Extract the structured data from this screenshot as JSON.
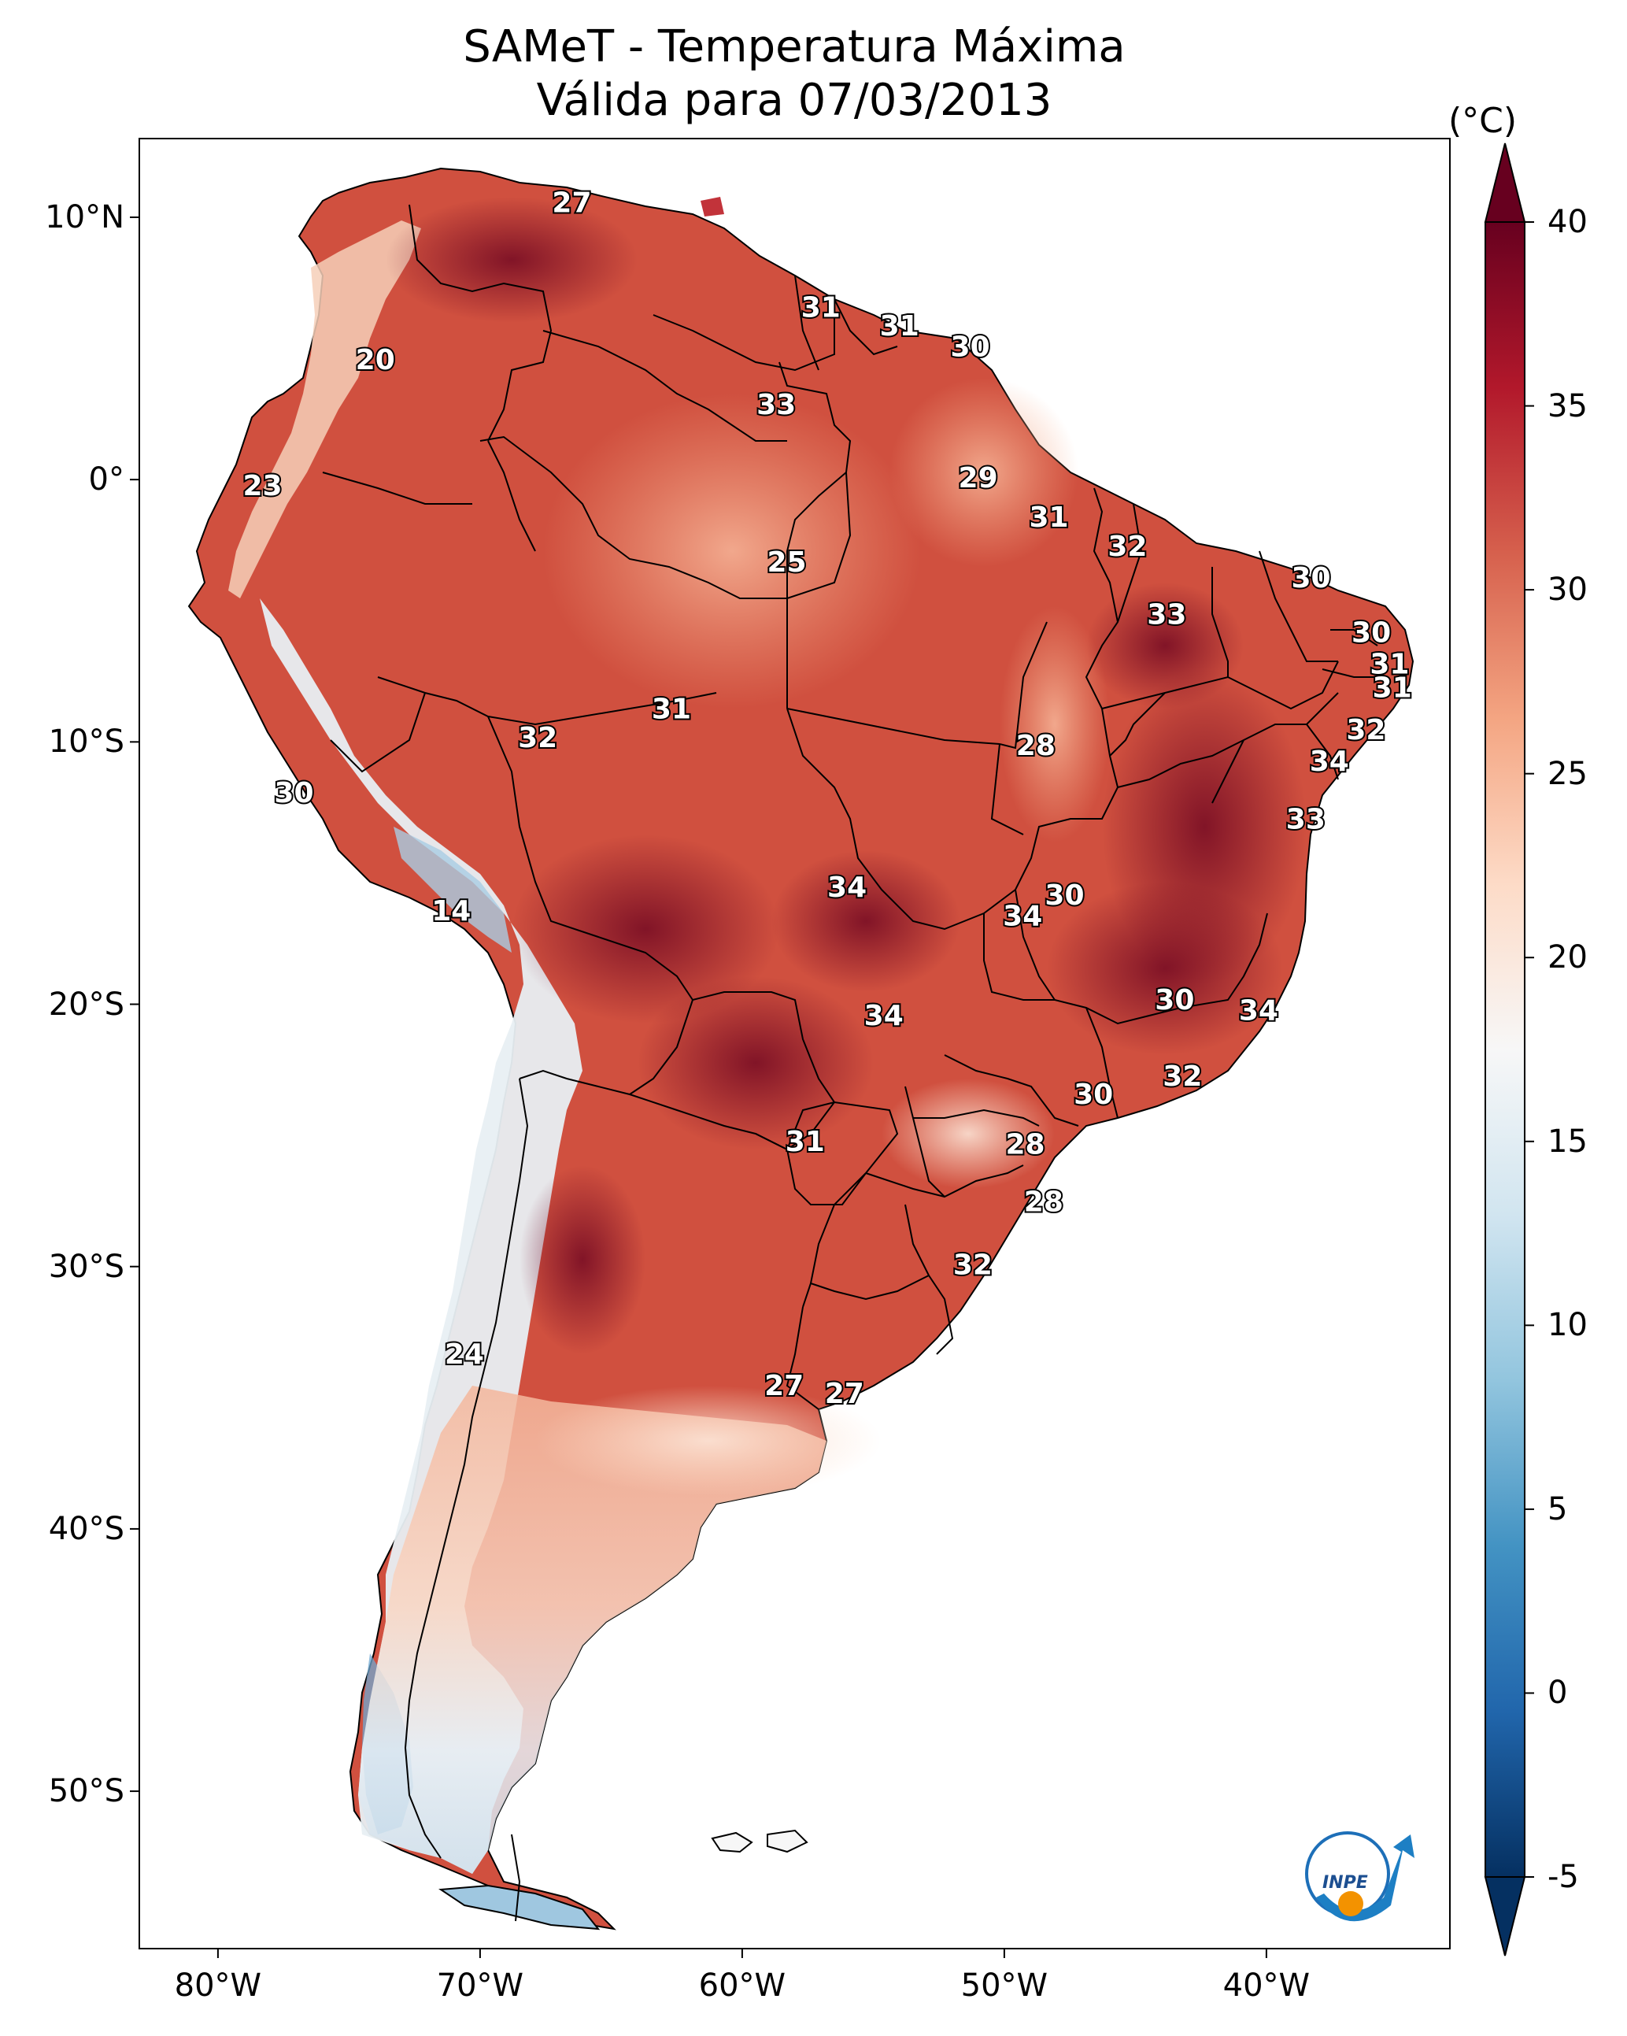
{
  "title": {
    "line1": "SAMeT - Temperatura Máxima",
    "line2": "Válida para 07/03/2013"
  },
  "axes": {
    "lat_labels": [
      "10°N",
      "0°",
      "10°S",
      "20°S",
      "30°S",
      "40°S",
      "50°S"
    ],
    "lat_values": [
      10,
      0,
      -10,
      -20,
      -30,
      -40,
      -50
    ],
    "lon_labels": [
      "80°W",
      "70°W",
      "60°W",
      "50°W",
      "40°W"
    ],
    "lon_values": [
      -80,
      -70,
      -60,
      -50,
      -40
    ],
    "extent": {
      "lon_min": -83,
      "lon_max": -33,
      "lat_min": -56,
      "lat_max": 13
    }
  },
  "colorbar": {
    "unit": "(°C)",
    "ticks": [
      "-5",
      "0",
      "5",
      "10",
      "15",
      "20",
      "25",
      "30",
      "35",
      "40"
    ],
    "tick_values": [
      -5,
      0,
      5,
      10,
      15,
      20,
      25,
      30,
      35,
      40
    ],
    "min": -5,
    "max": 40,
    "colors": [
      "#053061",
      "#2166ac",
      "#4393c3",
      "#92c5de",
      "#d1e5f0",
      "#f7f7f7",
      "#fddbc7",
      "#f4a582",
      "#d6604d",
      "#b2182b",
      "#67001f"
    ]
  },
  "logo": {
    "text": "INPE"
  },
  "chart_data": {
    "type": "heatmap",
    "title": "SAMeT - Temperatura Máxima",
    "subtitle": "Válida para 07/03/2013",
    "unit": "°C",
    "value_range": [
      -5,
      40
    ],
    "station_values": [
      {
        "lon": -66.5,
        "lat": 10.5,
        "value": "27"
      },
      {
        "lon": -74,
        "lat": 4.5,
        "value": "20"
      },
      {
        "lon": -78.3,
        "lat": -0.3,
        "value": "23"
      },
      {
        "lon": -57,
        "lat": 6.5,
        "value": "31"
      },
      {
        "lon": -54,
        "lat": 5.8,
        "value": "31"
      },
      {
        "lon": -51.3,
        "lat": 5,
        "value": "30"
      },
      {
        "lon": -58.7,
        "lat": 2.8,
        "value": "33"
      },
      {
        "lon": -51,
        "lat": 0,
        "value": "29"
      },
      {
        "lon": -48.3,
        "lat": -1.5,
        "value": "31"
      },
      {
        "lon": -58.3,
        "lat": -3.2,
        "value": "25"
      },
      {
        "lon": -45.3,
        "lat": -2.6,
        "value": "32"
      },
      {
        "lon": -38.3,
        "lat": -3.8,
        "value": "30"
      },
      {
        "lon": -43.8,
        "lat": -5.2,
        "value": "33"
      },
      {
        "lon": -36,
        "lat": -5.9,
        "value": "30"
      },
      {
        "lon": -35.3,
        "lat": -7.1,
        "value": "31"
      },
      {
        "lon": -35.2,
        "lat": -8,
        "value": "31"
      },
      {
        "lon": -36.2,
        "lat": -9.6,
        "value": "32"
      },
      {
        "lon": -37.6,
        "lat": -10.8,
        "value": "34"
      },
      {
        "lon": -38.5,
        "lat": -13,
        "value": "33"
      },
      {
        "lon": -62.7,
        "lat": -8.8,
        "value": "31"
      },
      {
        "lon": -67.8,
        "lat": -9.9,
        "value": "32"
      },
      {
        "lon": -48.8,
        "lat": -10.2,
        "value": "28"
      },
      {
        "lon": -77.1,
        "lat": -12,
        "value": "30"
      },
      {
        "lon": -71.1,
        "lat": -16.5,
        "value": "14"
      },
      {
        "lon": -56,
        "lat": -15.6,
        "value": "34"
      },
      {
        "lon": -47.7,
        "lat": -15.9,
        "value": "30"
      },
      {
        "lon": -49.3,
        "lat": -16.7,
        "value": "34"
      },
      {
        "lon": -43.5,
        "lat": -19.9,
        "value": "30"
      },
      {
        "lon": -40.3,
        "lat": -20.3,
        "value": "34"
      },
      {
        "lon": -54.6,
        "lat": -20.5,
        "value": "34"
      },
      {
        "lon": -43.2,
        "lat": -22.8,
        "value": "32"
      },
      {
        "lon": -46.6,
        "lat": -23.5,
        "value": "30"
      },
      {
        "lon": -57.6,
        "lat": -25.3,
        "value": "31"
      },
      {
        "lon": -49.2,
        "lat": -25.4,
        "value": "28"
      },
      {
        "lon": -48.5,
        "lat": -27.6,
        "value": "28"
      },
      {
        "lon": -51.2,
        "lat": -30,
        "value": "32"
      },
      {
        "lon": -70.6,
        "lat": -33.4,
        "value": "24"
      },
      {
        "lon": -58.4,
        "lat": -34.6,
        "value": "27"
      },
      {
        "lon": -56.1,
        "lat": -34.9,
        "value": "27"
      }
    ]
  }
}
